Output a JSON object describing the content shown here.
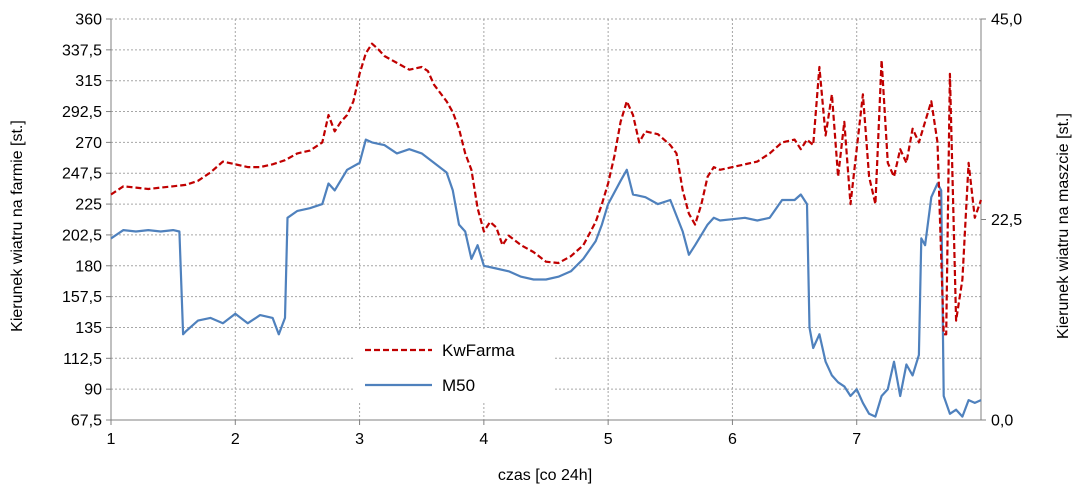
{
  "chart_data": {
    "type": "line",
    "xlabel": "czas [co 24h]",
    "ylabel_left": "Kierunek wiatru na farmie [st.]",
    "ylabel_right": "Kierunek wiatru na maszcie [st.]",
    "x_ticks": [
      "1",
      "2",
      "3",
      "4",
      "5",
      "6",
      "7"
    ],
    "x_range": [
      1,
      8
    ],
    "y_left_ticks": [
      "67,5",
      "90",
      "112,5",
      "135",
      "157,5",
      "180",
      "202,5",
      "225",
      "247,5",
      "270",
      "292,5",
      "315",
      "337,5",
      "360"
    ],
    "y_left_range": [
      67.5,
      360
    ],
    "y_right_ticks": [
      "0,0",
      "22,5",
      "45,0"
    ],
    "y_right_range": [
      0,
      45
    ],
    "grid": true,
    "legend_position": "center-left",
    "series": [
      {
        "name": "KwFarma",
        "axis": "left",
        "color": "#c00000",
        "style": "dashed",
        "points": [
          [
            1.0,
            232
          ],
          [
            1.1,
            238
          ],
          [
            1.2,
            237
          ],
          [
            1.3,
            236
          ],
          [
            1.4,
            237
          ],
          [
            1.5,
            238
          ],
          [
            1.6,
            239
          ],
          [
            1.7,
            242
          ],
          [
            1.8,
            248
          ],
          [
            1.9,
            256
          ],
          [
            2.0,
            254
          ],
          [
            2.1,
            252
          ],
          [
            2.2,
            252
          ],
          [
            2.3,
            254
          ],
          [
            2.4,
            257
          ],
          [
            2.5,
            262
          ],
          [
            2.6,
            264
          ],
          [
            2.7,
            270
          ],
          [
            2.75,
            290
          ],
          [
            2.8,
            278
          ],
          [
            2.85,
            285
          ],
          [
            2.9,
            290
          ],
          [
            2.95,
            300
          ],
          [
            3.0,
            320
          ],
          [
            3.05,
            335
          ],
          [
            3.1,
            342
          ],
          [
            3.15,
            338
          ],
          [
            3.2,
            333
          ],
          [
            3.3,
            328
          ],
          [
            3.4,
            323
          ],
          [
            3.5,
            325
          ],
          [
            3.55,
            322
          ],
          [
            3.6,
            312
          ],
          [
            3.7,
            300
          ],
          [
            3.75,
            292
          ],
          [
            3.8,
            280
          ],
          [
            3.85,
            262
          ],
          [
            3.9,
            250
          ],
          [
            3.95,
            222
          ],
          [
            4.0,
            205
          ],
          [
            4.05,
            212
          ],
          [
            4.1,
            208
          ],
          [
            4.15,
            195
          ],
          [
            4.2,
            202
          ],
          [
            4.3,
            195
          ],
          [
            4.4,
            190
          ],
          [
            4.5,
            183
          ],
          [
            4.6,
            182
          ],
          [
            4.7,
            187
          ],
          [
            4.8,
            195
          ],
          [
            4.9,
            212
          ],
          [
            4.95,
            225
          ],
          [
            5.0,
            240
          ],
          [
            5.05,
            260
          ],
          [
            5.1,
            285
          ],
          [
            5.15,
            300
          ],
          [
            5.2,
            290
          ],
          [
            5.25,
            270
          ],
          [
            5.3,
            278
          ],
          [
            5.4,
            276
          ],
          [
            5.5,
            268
          ],
          [
            5.55,
            262
          ],
          [
            5.6,
            235
          ],
          [
            5.65,
            218
          ],
          [
            5.7,
            210
          ],
          [
            5.75,
            225
          ],
          [
            5.8,
            245
          ],
          [
            5.85,
            252
          ],
          [
            5.9,
            250
          ],
          [
            6.0,
            252
          ],
          [
            6.1,
            254
          ],
          [
            6.2,
            256
          ],
          [
            6.3,
            262
          ],
          [
            6.4,
            270
          ],
          [
            6.5,
            272
          ],
          [
            6.55,
            265
          ],
          [
            6.6,
            272
          ],
          [
            6.65,
            268
          ],
          [
            6.7,
            325
          ],
          [
            6.75,
            275
          ],
          [
            6.8,
            305
          ],
          [
            6.85,
            245
          ],
          [
            6.9,
            285
          ],
          [
            6.95,
            225
          ],
          [
            7.0,
            265
          ],
          [
            7.05,
            305
          ],
          [
            7.1,
            245
          ],
          [
            7.15,
            225
          ],
          [
            7.2,
            330
          ],
          [
            7.25,
            255
          ],
          [
            7.3,
            245
          ],
          [
            7.35,
            265
          ],
          [
            7.4,
            255
          ],
          [
            7.45,
            280
          ],
          [
            7.5,
            270
          ],
          [
            7.55,
            285
          ],
          [
            7.6,
            300
          ],
          [
            7.65,
            270
          ],
          [
            7.7,
            130
          ],
          [
            7.72,
            130
          ],
          [
            7.75,
            320
          ],
          [
            7.8,
            140
          ],
          [
            7.85,
            170
          ],
          [
            7.9,
            255
          ],
          [
            7.95,
            215
          ],
          [
            8.0,
            228
          ]
        ]
      },
      {
        "name": "M50",
        "axis": "left",
        "color": "#4f81bd",
        "style": "solid",
        "points": [
          [
            1.0,
            200
          ],
          [
            1.1,
            206
          ],
          [
            1.2,
            205
          ],
          [
            1.3,
            206
          ],
          [
            1.4,
            205
          ],
          [
            1.5,
            206
          ],
          [
            1.55,
            205
          ],
          [
            1.58,
            130
          ],
          [
            1.6,
            132
          ],
          [
            1.7,
            140
          ],
          [
            1.8,
            142
          ],
          [
            1.9,
            138
          ],
          [
            2.0,
            145
          ],
          [
            2.1,
            138
          ],
          [
            2.2,
            144
          ],
          [
            2.3,
            142
          ],
          [
            2.35,
            130
          ],
          [
            2.4,
            142
          ],
          [
            2.42,
            215
          ],
          [
            2.5,
            220
          ],
          [
            2.6,
            222
          ],
          [
            2.7,
            225
          ],
          [
            2.75,
            240
          ],
          [
            2.8,
            235
          ],
          [
            2.9,
            250
          ],
          [
            3.0,
            255
          ],
          [
            3.05,
            272
          ],
          [
            3.1,
            270
          ],
          [
            3.2,
            268
          ],
          [
            3.3,
            262
          ],
          [
            3.4,
            265
          ],
          [
            3.5,
            262
          ],
          [
            3.6,
            255
          ],
          [
            3.7,
            248
          ],
          [
            3.75,
            235
          ],
          [
            3.8,
            210
          ],
          [
            3.85,
            205
          ],
          [
            3.9,
            185
          ],
          [
            3.95,
            195
          ],
          [
            4.0,
            180
          ],
          [
            4.1,
            178
          ],
          [
            4.2,
            176
          ],
          [
            4.3,
            172
          ],
          [
            4.4,
            170
          ],
          [
            4.5,
            170
          ],
          [
            4.6,
            172
          ],
          [
            4.7,
            176
          ],
          [
            4.8,
            185
          ],
          [
            4.9,
            198
          ],
          [
            4.95,
            210
          ],
          [
            5.0,
            225
          ],
          [
            5.1,
            242
          ],
          [
            5.15,
            250
          ],
          [
            5.2,
            232
          ],
          [
            5.3,
            230
          ],
          [
            5.4,
            225
          ],
          [
            5.5,
            228
          ],
          [
            5.6,
            205
          ],
          [
            5.65,
            188
          ],
          [
            5.7,
            195
          ],
          [
            5.8,
            210
          ],
          [
            5.85,
            215
          ],
          [
            5.9,
            213
          ],
          [
            6.0,
            214
          ],
          [
            6.1,
            215
          ],
          [
            6.2,
            213
          ],
          [
            6.3,
            215
          ],
          [
            6.4,
            228
          ],
          [
            6.5,
            228
          ],
          [
            6.55,
            232
          ],
          [
            6.6,
            225
          ],
          [
            6.62,
            135
          ],
          [
            6.65,
            120
          ],
          [
            6.7,
            130
          ],
          [
            6.75,
            110
          ],
          [
            6.8,
            100
          ],
          [
            6.85,
            95
          ],
          [
            6.9,
            92
          ],
          [
            6.95,
            85
          ],
          [
            7.0,
            90
          ],
          [
            7.05,
            80
          ],
          [
            7.1,
            72
          ],
          [
            7.15,
            70
          ],
          [
            7.2,
            85
          ],
          [
            7.25,
            90
          ],
          [
            7.3,
            110
          ],
          [
            7.35,
            85
          ],
          [
            7.4,
            108
          ],
          [
            7.45,
            100
          ],
          [
            7.5,
            115
          ],
          [
            7.52,
            200
          ],
          [
            7.55,
            195
          ],
          [
            7.6,
            230
          ],
          [
            7.65,
            240
          ],
          [
            7.68,
            235
          ],
          [
            7.7,
            85
          ],
          [
            7.75,
            72
          ],
          [
            7.8,
            75
          ],
          [
            7.85,
            70
          ],
          [
            7.9,
            82
          ],
          [
            7.95,
            80
          ],
          [
            8.0,
            82
          ]
        ]
      }
    ]
  }
}
